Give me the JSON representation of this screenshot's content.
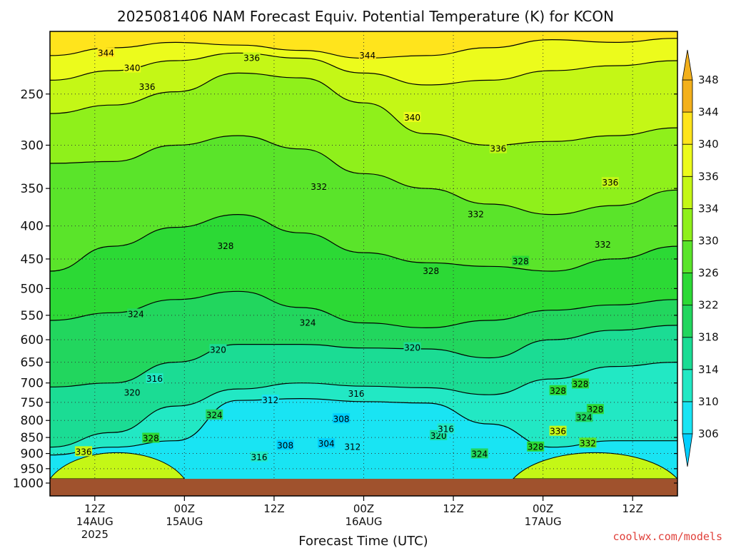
{
  "chart_data": {
    "type": "heatmap",
    "title": "2025081406 NAM Forecast Equiv. Potential Temperature (K) for KCON",
    "xlabel": "Forecast Time (UTC)",
    "ylabel": "",
    "y_scale": "log-pressure, inverted",
    "ylim": [
      1000,
      200
    ],
    "y_ticks": [
      250,
      300,
      350,
      400,
      450,
      500,
      550,
      600,
      650,
      700,
      750,
      800,
      850,
      900,
      950,
      1000
    ],
    "x_ticks": [
      {
        "hour": 6,
        "top": "12Z",
        "mid": "14AUG",
        "bot": "2025"
      },
      {
        "hour": 18,
        "top": "00Z",
        "mid": "15AUG",
        "bot": ""
      },
      {
        "hour": 30,
        "top": "12Z",
        "mid": "",
        "bot": ""
      },
      {
        "hour": 42,
        "top": "00Z",
        "mid": "16AUG",
        "bot": ""
      },
      {
        "hour": 54,
        "top": "12Z",
        "mid": "",
        "bot": ""
      },
      {
        "hour": 66,
        "top": "00Z",
        "mid": "17AUG",
        "bot": ""
      },
      {
        "hour": 78,
        "top": "12Z",
        "mid": "",
        "bot": ""
      }
    ],
    "xlim_hours": [
      0,
      84
    ],
    "colorbar": {
      "levels": [
        306,
        310,
        314,
        318,
        322,
        326,
        330,
        334,
        336,
        340,
        344,
        348
      ],
      "colors": [
        "#00cfff",
        "#19e4f3",
        "#22e8c4",
        "#1bdc94",
        "#22d65e",
        "#2cd935",
        "#5ae42a",
        "#8ff01b",
        "#c4f716",
        "#ecfb1c",
        "#ffe41c",
        "#f3b01c"
      ]
    },
    "ground_color": "#a0522d",
    "ground_pressure": 985,
    "grid": true,
    "contour_interval": 4,
    "isentropes": [
      {
        "value": 344,
        "p": [
          218,
          212,
          208,
          210,
          214,
          220,
          218,
          212,
          206,
          208,
          205
        ]
      },
      {
        "value": 340,
        "p": [
          238,
          230,
          222,
          216,
          220,
          232,
          242,
          238,
          230,
          226,
          222
        ]
      },
      {
        "value": 336,
        "p": [
          268,
          260,
          248,
          232,
          236,
          258,
          288,
          300,
          296,
          290,
          282
        ]
      },
      {
        "value": 332,
        "p": [
          320,
          318,
          300,
          290,
          304,
          332,
          350,
          370,
          384,
          372,
          352
        ]
      },
      {
        "value": 328,
        "p": [
          470,
          430,
          402,
          384,
          410,
          440,
          456,
          462,
          470,
          450,
          430
        ]
      },
      {
        "value": 324,
        "p": [
          560,
          545,
          520,
          505,
          535,
          565,
          575,
          560,
          540,
          530,
          520
        ]
      },
      {
        "value": 320,
        "p": [
          710,
          700,
          650,
          610,
          610,
          618,
          620,
          640,
          600,
          580,
          570
        ]
      },
      {
        "value": 316,
        "p": [
          880,
          835,
          760,
          715,
          700,
          708,
          712,
          730,
          690,
          660,
          650
        ]
      },
      {
        "value": 312,
        "p": [
          905,
          880,
          860,
          745,
          740,
          748,
          752,
          810,
          880,
          860,
          860
        ]
      }
    ],
    "contour_labels": [
      {
        "text": "344",
        "hour": 7.5,
        "p": 216
      },
      {
        "text": "344",
        "hour": 42.5,
        "p": 218
      },
      {
        "text": "340",
        "hour": 11,
        "p": 228
      },
      {
        "text": "340",
        "hour": 48.5,
        "p": 272
      },
      {
        "text": "336",
        "hour": 27,
        "p": 220
      },
      {
        "text": "336",
        "hour": 13,
        "p": 244
      },
      {
        "text": "336",
        "hour": 60,
        "p": 304
      },
      {
        "text": "336",
        "hour": 75,
        "p": 343
      },
      {
        "text": "332",
        "hour": 36,
        "p": 348
      },
      {
        "text": "332",
        "hour": 57,
        "p": 384
      },
      {
        "text": "332",
        "hour": 74,
        "p": 428
      },
      {
        "text": "328",
        "hour": 23.5,
        "p": 430
      },
      {
        "text": "328",
        "hour": 51,
        "p": 470
      },
      {
        "text": "328",
        "hour": 63,
        "p": 454
      },
      {
        "text": "328",
        "hour": 71,
        "p": 703
      },
      {
        "text": "328",
        "hour": 68,
        "p": 720
      },
      {
        "text": "328",
        "hour": 73,
        "p": 770
      },
      {
        "text": "328",
        "hour": 13.5,
        "p": 853
      },
      {
        "text": "328",
        "hour": 65,
        "p": 880
      },
      {
        "text": "324",
        "hour": 11.5,
        "p": 548
      },
      {
        "text": "324",
        "hour": 34.5,
        "p": 565
      },
      {
        "text": "324",
        "hour": 22,
        "p": 785
      },
      {
        "text": "324",
        "hour": 71.5,
        "p": 792
      },
      {
        "text": "324",
        "hour": 57.5,
        "p": 902
      },
      {
        "text": "320",
        "hour": 22.5,
        "p": 622
      },
      {
        "text": "320",
        "hour": 48.5,
        "p": 618
      },
      {
        "text": "320",
        "hour": 11,
        "p": 725
      },
      {
        "text": "320",
        "hour": 52,
        "p": 845
      },
      {
        "text": "316",
        "hour": 14,
        "p": 690
      },
      {
        "text": "316",
        "hour": 41,
        "p": 728
      },
      {
        "text": "316",
        "hour": 53,
        "p": 825
      },
      {
        "text": "316",
        "hour": 28,
        "p": 912
      },
      {
        "text": "312",
        "hour": 29.5,
        "p": 745
      },
      {
        "text": "312",
        "hour": 40.5,
        "p": 880
      },
      {
        "text": "308",
        "hour": 39,
        "p": 796
      },
      {
        "text": "308",
        "hour": 31.5,
        "p": 875
      },
      {
        "text": "304",
        "hour": 37,
        "p": 870
      },
      {
        "text": "336",
        "hour": 4.5,
        "p": 895
      },
      {
        "text": "336",
        "hour": 68,
        "p": 832
      },
      {
        "text": "332",
        "hour": 72,
        "p": 868
      }
    ],
    "bands": [
      {
        "from": 330,
        "to": 332,
        "color": "#5ae42a"
      },
      {
        "from": 326,
        "to": 330,
        "color": "#2cd935"
      },
      {
        "from": 322,
        "to": 326,
        "color": "#22d65e"
      },
      {
        "from": 318,
        "to": 322,
        "color": "#1bdc94"
      },
      {
        "from": 314,
        "to": 318,
        "color": "#22e8c4"
      },
      {
        "from": 310,
        "to": 314,
        "color": "#19e4f3"
      },
      {
        "from": 306,
        "to": 310,
        "color": "#00cfff"
      }
    ],
    "warm_low_patches": [
      {
        "hours": [
          0,
          18
        ],
        "value": 338
      },
      {
        "hours": [
          62,
          84
        ],
        "value": 336
      }
    ]
  },
  "credit": "coolwx.com/models"
}
